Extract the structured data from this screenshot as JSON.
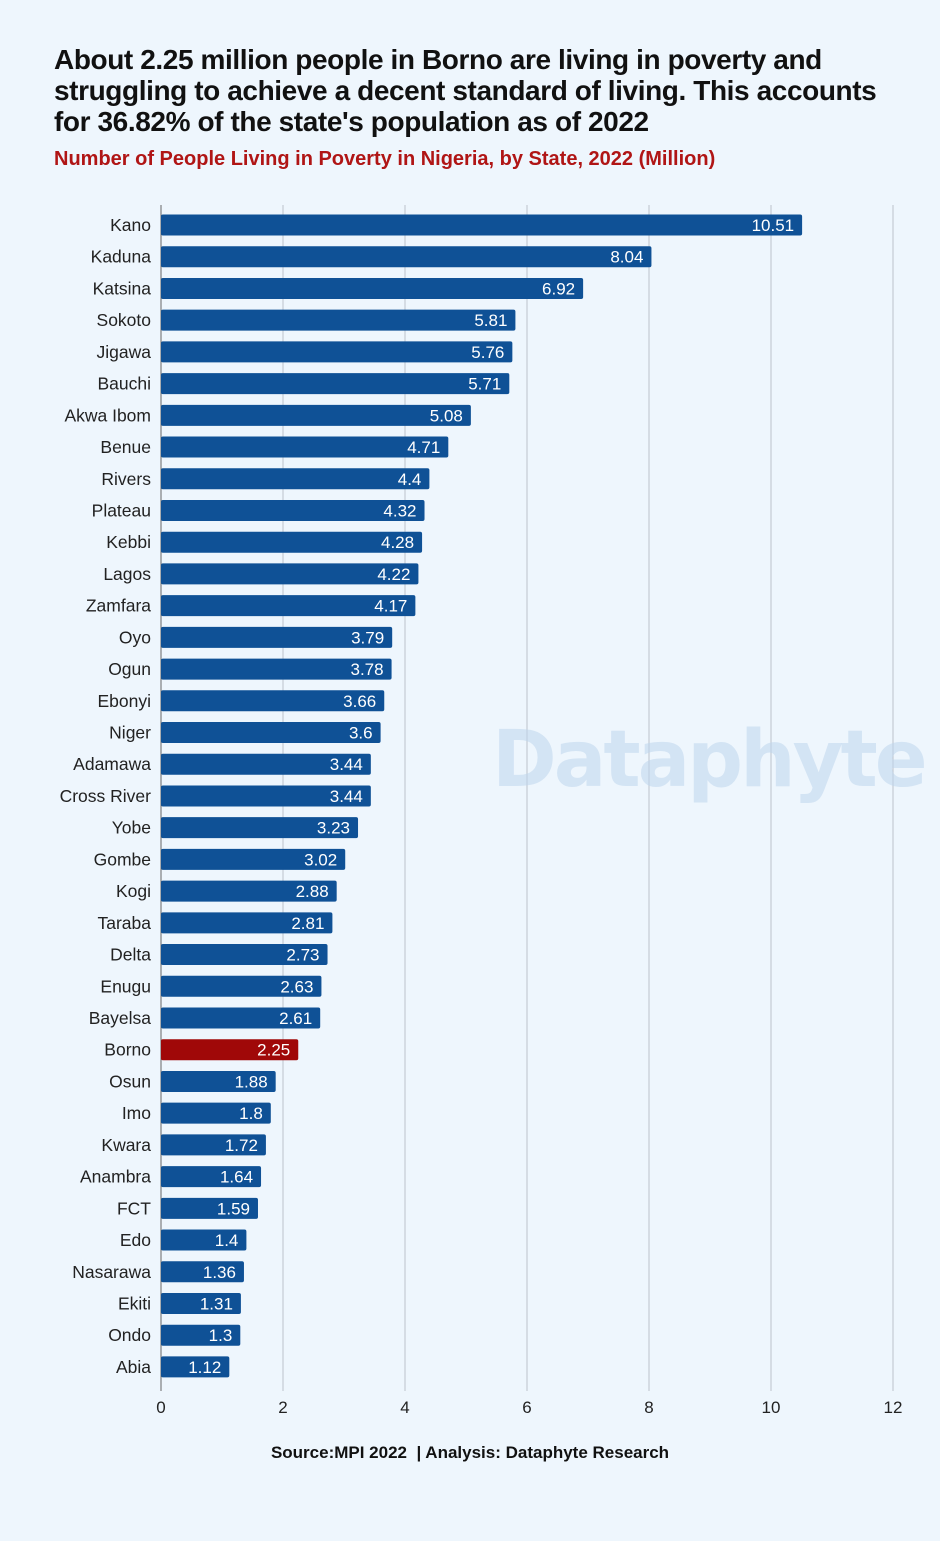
{
  "headline": "About 2.25 million people in Borno are living in poverty and struggling to achieve a decent standard of living. This accounts for 36.82% of the state's population as of 2022",
  "subtitle": "Number of People Living in Poverty in Nigeria, by State, 2022 (Million)",
  "watermark": "Dataphyte",
  "source": "Source:MPI 2022  | Analysis: Dataphyte Research",
  "colors": {
    "bar": "#0f5196",
    "highlight": "#a00808",
    "grid": "#bcc3cc",
    "background": "#eef6fd"
  },
  "chart_data": {
    "type": "bar",
    "orientation": "horizontal",
    "categories": [
      "Kano",
      "Kaduna",
      "Katsina",
      "Sokoto",
      "Jigawa",
      "Bauchi",
      "Akwa Ibom",
      "Benue",
      "Rivers",
      "Plateau",
      "Kebbi",
      "Lagos",
      "Zamfara",
      "Oyo",
      "Ogun",
      "Ebonyi",
      "Niger",
      "Adamawa",
      "Cross River",
      "Yobe",
      "Gombe",
      "Kogi",
      "Taraba",
      "Delta",
      "Enugu",
      "Bayelsa",
      "Borno",
      "Osun",
      "Imo",
      "Kwara",
      "Anambra",
      "FCT",
      "Edo",
      "Nasarawa",
      "Ekiti",
      "Ondo",
      "Abia"
    ],
    "values": [
      10.51,
      8.04,
      6.92,
      5.81,
      5.76,
      5.71,
      5.08,
      4.71,
      4.4,
      4.32,
      4.28,
      4.22,
      4.17,
      3.79,
      3.78,
      3.66,
      3.6,
      3.44,
      3.44,
      3.23,
      3.02,
      2.88,
      2.81,
      2.73,
      2.63,
      2.61,
      2.25,
      1.88,
      1.8,
      1.72,
      1.64,
      1.59,
      1.4,
      1.36,
      1.31,
      1.3,
      1.12
    ],
    "highlight_category": "Borno",
    "xlim": [
      0,
      12
    ],
    "xticks": [
      0,
      2,
      4,
      6,
      8,
      10,
      12
    ],
    "grid": true,
    "legend": "none"
  }
}
